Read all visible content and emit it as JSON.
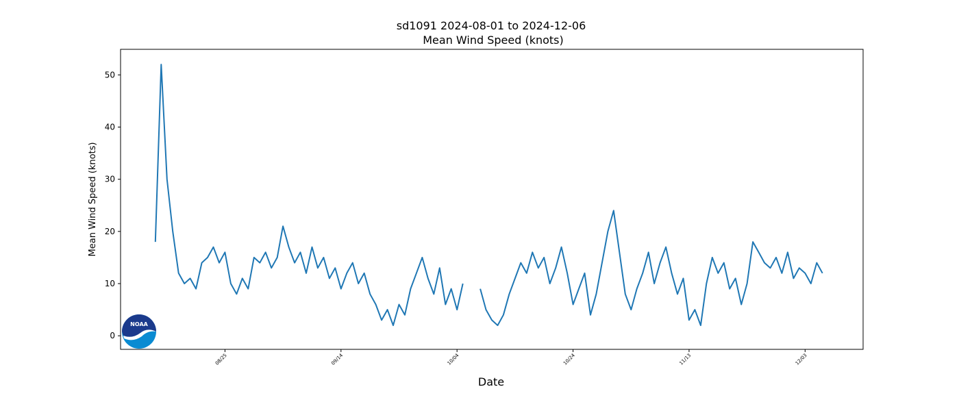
{
  "chart_data": {
    "type": "line",
    "title": "sd1091 2024-08-01 to 2024-12-06",
    "subtitle": "Mean Wind Speed (knots)",
    "xlabel": "Date",
    "ylabel": "Mean Wind Speed (knots)",
    "x": [
      "08/13",
      "08/14",
      "08/15",
      "08/16",
      "08/17",
      "08/18",
      "08/19",
      "08/20",
      "08/21",
      "08/22",
      "08/23",
      "08/24",
      "08/25",
      "08/26",
      "08/27",
      "08/28",
      "08/29",
      "08/30",
      "08/31",
      "09/01",
      "09/02",
      "09/03",
      "09/04",
      "09/05",
      "09/06",
      "09/07",
      "09/08",
      "09/09",
      "09/10",
      "09/11",
      "09/12",
      "09/13",
      "09/14",
      "09/15",
      "09/16",
      "09/17",
      "09/18",
      "09/19",
      "09/20",
      "09/21",
      "09/22",
      "09/23",
      "09/24",
      "09/25",
      "09/26",
      "09/27",
      "09/28",
      "09/29",
      "09/30",
      "10/01",
      "10/02",
      "10/03",
      "10/04",
      "10/05",
      "10/06",
      "10/07",
      "10/08",
      "10/09",
      "10/10",
      "10/11",
      "10/12",
      "10/13",
      "10/14",
      "10/15",
      "10/16",
      "10/17",
      "10/18",
      "10/19",
      "10/20",
      "10/21",
      "10/22",
      "10/23",
      "10/24",
      "10/25",
      "10/26",
      "10/27",
      "10/28",
      "10/29",
      "10/30",
      "10/31",
      "11/01",
      "11/02",
      "11/03",
      "11/04",
      "11/05",
      "11/06",
      "11/07",
      "11/08",
      "11/09",
      "11/10",
      "11/11",
      "11/12",
      "11/13",
      "11/14",
      "11/15",
      "11/16",
      "11/17",
      "11/18",
      "11/19",
      "11/20",
      "11/21",
      "11/22",
      "11/23",
      "11/24",
      "11/25",
      "11/26",
      "11/27",
      "11/28",
      "11/29",
      "11/30",
      "12/01",
      "12/02",
      "12/03",
      "12/04",
      "12/05",
      "12/06"
    ],
    "series": [
      {
        "name": "Mean Wind Speed",
        "color": "#1f77b4",
        "values": [
          18,
          52,
          30,
          20,
          12,
          10,
          11,
          9,
          14,
          15,
          17,
          14,
          16,
          10,
          8,
          11,
          9,
          15,
          14,
          16,
          13,
          15,
          21,
          17,
          14,
          16,
          12,
          17,
          13,
          15,
          11,
          13,
          9,
          12,
          14,
          10,
          12,
          8,
          6,
          3,
          5,
          2,
          6,
          4,
          9,
          12,
          15,
          11,
          8,
          13,
          6,
          9,
          5,
          10,
          null,
          null,
          9,
          5,
          3,
          2,
          4,
          8,
          11,
          14,
          12,
          16,
          13,
          15,
          10,
          13,
          17,
          12,
          6,
          9,
          12,
          4,
          8,
          14,
          20,
          24,
          16,
          8,
          5,
          9,
          12,
          16,
          10,
          14,
          17,
          12,
          8,
          11,
          3,
          5,
          2,
          10,
          15,
          12,
          14,
          9,
          11,
          6,
          10,
          18,
          16,
          14,
          13,
          15,
          12,
          16,
          11,
          13,
          12,
          10,
          14,
          12
        ]
      }
    ],
    "xlim": [
      "08/07",
      "12/13"
    ],
    "xticks": [
      "08/25",
      "09/14",
      "10/04",
      "10/24",
      "11/13",
      "12/03"
    ],
    "ylim": [
      -2.6,
      54.9
    ],
    "yticks": [
      0,
      10,
      20,
      30,
      40,
      50
    ]
  }
}
